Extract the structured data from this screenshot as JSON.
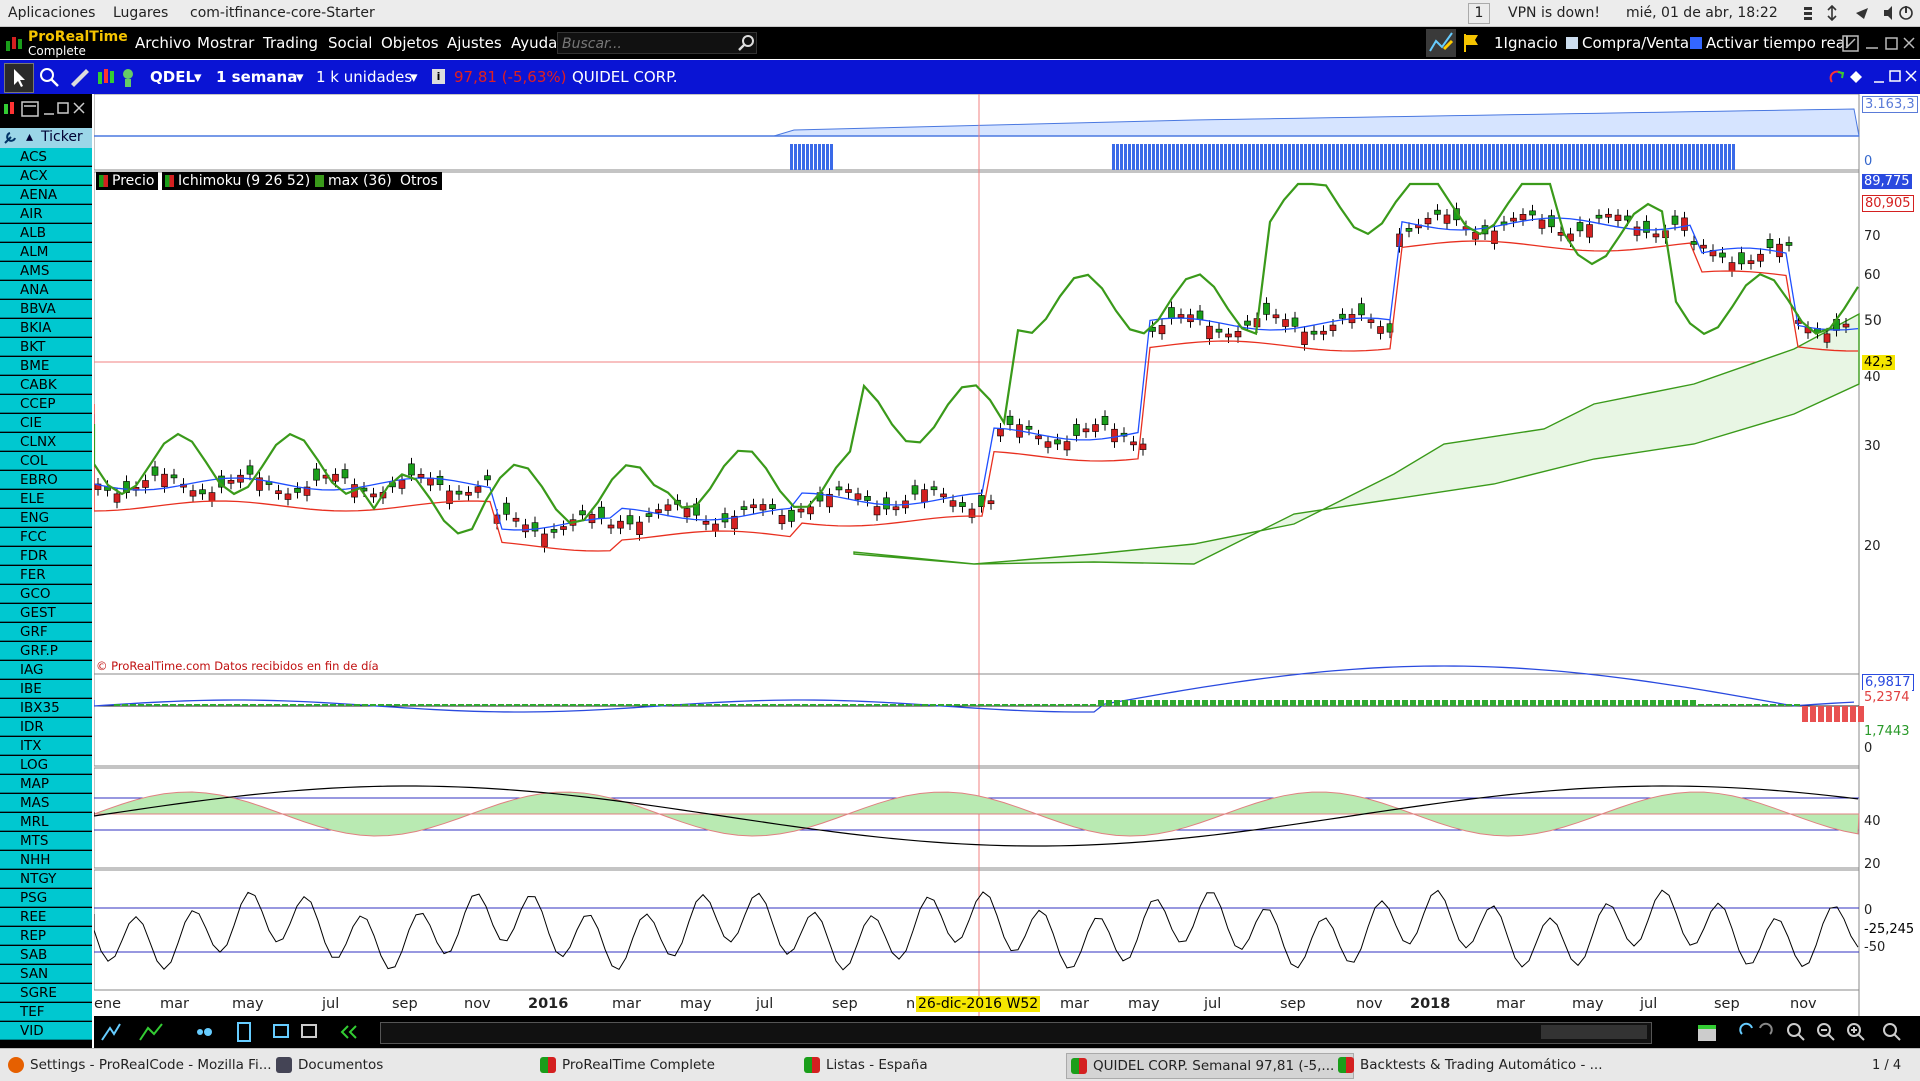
{
  "gnome": {
    "apps": "Aplicaciones",
    "places": "Lugares",
    "window": "com-itfinance-core-Starter",
    "workspace": "1",
    "vpn": "VPN is down!",
    "clock": "mié, 01 de abr, 18:22"
  },
  "menubar": {
    "brand_top": "ProRealTime",
    "brand_bottom": "Complete",
    "items": [
      "Archivo",
      "Mostrar",
      "Trading",
      "Social",
      "Objetos",
      "Ajustes",
      "Ayuda"
    ],
    "search_placeholder": "Buscar...",
    "user": "1Ignacio",
    "buy_sell": "Compra/Venta",
    "realtime": "Activar tiempo real"
  },
  "toolbar": {
    "symbol": "QDEL",
    "period": "1 semana",
    "units": "1 k unidades",
    "quote": "97,81 (-5,63%)",
    "name": "QUIDEL CORP."
  },
  "ticker_panel": {
    "header": "Ticker",
    "items": [
      "ACS",
      "ACX",
      "AENA",
      "AIR",
      "ALB",
      "ALM",
      "AMS",
      "ANA",
      "BBVA",
      "BKIA",
      "BKT",
      "BME",
      "CABK",
      "CCEP",
      "CIE",
      "CLNX",
      "COL",
      "EBRO",
      "ELE",
      "ENG",
      "FCC",
      "FDR",
      "FER",
      "GCO",
      "GEST",
      "GRF",
      "GRF.P",
      "IAG",
      "IBE",
      "IBX35",
      "IDR",
      "ITX",
      "LOG",
      "MAP",
      "MAS",
      "MRL",
      "MTS",
      "NHH",
      "NTGY",
      "PSG",
      "REE",
      "REP",
      "SAB",
      "SAN",
      "SGRE",
      "TEF",
      "VID"
    ]
  },
  "chart": {
    "legend": [
      "Precio",
      "Ichimoku (9 26 52)",
      "max (36)",
      "Otros"
    ],
    "watermark": "© ProRealTime.com Datos recibidos en fin de día",
    "top_scale": {
      "value": "3.163,3",
      "zero": "0"
    },
    "price_scale": [
      "70",
      "60",
      "50",
      "40",
      "30",
      "20"
    ],
    "price_boxes": {
      "high": "89,775",
      "max": "80,905",
      "cursor": "42,3"
    },
    "macd_scale": {
      "a": "6,9817",
      "b": "5,2374",
      "c": "1,7443",
      "zero": "0"
    },
    "osc_scale": [
      "40",
      "20",
      "0"
    ],
    "cci_scale": {
      "value": "-25,245",
      "level": "-50"
    },
    "x_axis": [
      "ene",
      "mar",
      "may",
      "jul",
      "sep",
      "nov",
      "2016",
      "mar",
      "may",
      "jul",
      "sep",
      "n",
      "mar",
      "may",
      "jul",
      "sep",
      "nov",
      "2018",
      "mar",
      "may",
      "jul",
      "sep",
      "nov"
    ],
    "cursor_date": "26-dic-2016 W52"
  },
  "taskbar": {
    "items": [
      "Settings - ProRealCode - Mozilla Fi...",
      "Documentos",
      "ProRealTime Complete",
      "Listas - España",
      "QUIDEL CORP. Semanal 97,81 (-5,...",
      "Backtests & Trading Automático - ..."
    ],
    "pager": "1 / 4"
  },
  "colors": {
    "toolbar_blue": "#0a14d4",
    "ticker_cyan": "#00c8d0",
    "candle_green": "#1a9e1a",
    "candle_red": "#d42020",
    "tenkan_blue": "#1f4fff",
    "kijun_red": "#e83020",
    "chikou_green": "#3a9a1a"
  }
}
